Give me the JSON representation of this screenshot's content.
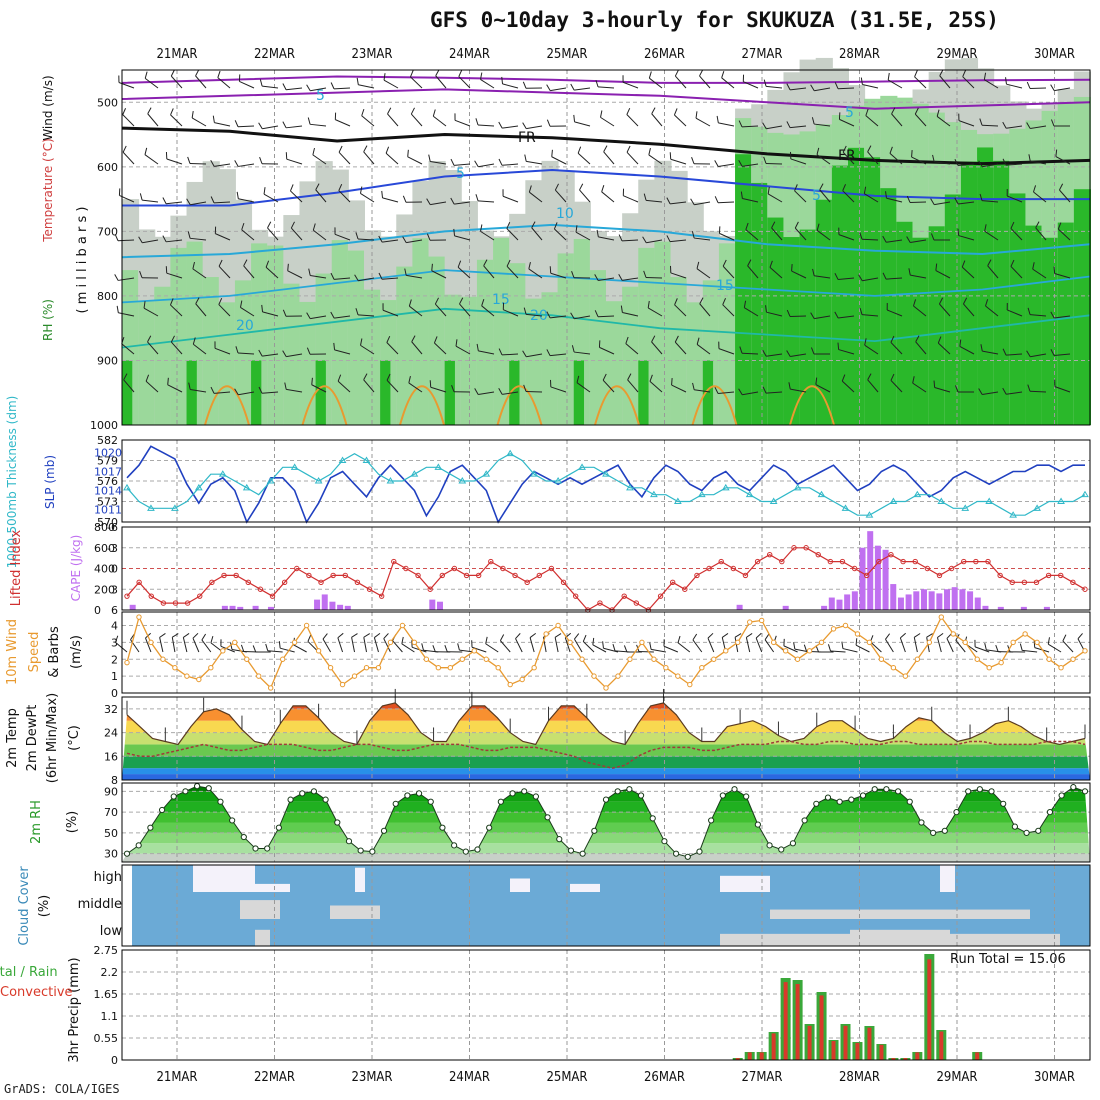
{
  "title": "GFS 0~10day 3-hourly for SKUKUZA (31.5E, 25S)",
  "credit": "GrADS: COLA/IGES",
  "dates": [
    "21MAR",
    "22MAR",
    "23MAR",
    "24MAR",
    "25MAR",
    "26MAR",
    "27MAR",
    "28MAR",
    "29MAR",
    "30MAR"
  ],
  "colors": {
    "rh_green": "#2ab82a",
    "rh_light": "#9bd89b",
    "rh_grey": "#c8d0c8",
    "temp_orange": "#e89a30",
    "temp_cyan": "#28a8d8",
    "temp_blue": "#2848d8",
    "wind_purple": "#8a20b0",
    "slp_blue": "#2040c0",
    "thick_cyan": "#30b8c8",
    "li_red": "#d03030",
    "cape_violet": "#c070f0",
    "wind10": "#e89a30",
    "cloud_blue": "#6baad6",
    "cloud_white": "#f4f2fa",
    "cloud_grey": "#d8d8d8",
    "rain_green": "#3aa83a",
    "rain_red": "#d83a2a"
  },
  "chart_data": [
    {
      "type": "heatmap",
      "panel": "cross-section",
      "ylabel_parts": [
        "RH (%)",
        "Temperature (°C)",
        "Wind (m/s)"
      ],
      "yunits": "( m i l l i b a r s )",
      "yticks": [
        500,
        600,
        700,
        800,
        900,
        1000
      ],
      "ylim": [
        450,
        1000
      ],
      "contour_labels": [
        "5",
        "FR",
        "FR",
        "5",
        "5",
        "10",
        "15",
        "15",
        "20",
        "20",
        "5"
      ],
      "freezing_level_mb": [
        540,
        545,
        560,
        550,
        555,
        565,
        580,
        590,
        595,
        590
      ],
      "isotherm_5": [
        660,
        660,
        640,
        615,
        605,
        615,
        630,
        645,
        650,
        650
      ],
      "isotherm_10": [
        740,
        735,
        720,
        700,
        690,
        700,
        720,
        730,
        735,
        720
      ]
    },
    {
      "type": "line",
      "panel": "thickness-slp",
      "ylabel_left": "1000-500mb Thickness (dm)",
      "ylabel_right": "SLP (mb)",
      "left_ticks": [
        570,
        573,
        576,
        579,
        582
      ],
      "right_ticks": [
        1011,
        1014,
        1017,
        1020
      ],
      "series": [
        {
          "name": "SLP (mb)",
          "values": [
            1016,
            1018,
            1021,
            1020,
            1019,
            1015,
            1012,
            1015,
            1016,
            1014,
            1009,
            1012,
            1016,
            1016,
            1014,
            1009,
            1012,
            1016,
            1017,
            1015,
            1013,
            1016,
            1018,
            1016,
            1014,
            1010,
            1013,
            1017,
            1018,
            1016,
            1014,
            1009,
            1012,
            1015,
            1017,
            1016,
            1015,
            1016,
            1015,
            1016,
            1017,
            1018,
            1015,
            1013,
            1016,
            1018,
            1017,
            1015,
            1014,
            1016,
            1017,
            1015,
            1014,
            1016,
            1018,
            1017,
            1015,
            1016,
            1017,
            1018,
            1016,
            1014,
            1015,
            1017,
            1018,
            1017,
            1015,
            1013,
            1014,
            1016,
            1017,
            1016,
            1015,
            1016,
            1017,
            1017,
            1018,
            1018,
            1017,
            1018,
            1018
          ]
        },
        {
          "name": "Thickness (dm)",
          "values": [
            575,
            573,
            572,
            572,
            572,
            573,
            575,
            577,
            577,
            576,
            575,
            574,
            576,
            578,
            578,
            577,
            576,
            577,
            579,
            580,
            579,
            577,
            576,
            576,
            577,
            578,
            578,
            577,
            576,
            576,
            577,
            579,
            580,
            579,
            577,
            576,
            576,
            577,
            578,
            578,
            577,
            576,
            575,
            575,
            574,
            574,
            573,
            573,
            574,
            574,
            575,
            575,
            574,
            573,
            573,
            574,
            575,
            575,
            574,
            573,
            572,
            571,
            571,
            572,
            573,
            573,
            574,
            574,
            573,
            572,
            572,
            573,
            573,
            572,
            571,
            571,
            572,
            573,
            573,
            573,
            574
          ]
        }
      ]
    },
    {
      "type": "bar",
      "panel": "cape-li",
      "ylabel_left": "Lifted Index",
      "ylabel_right": "CAPE (J/kg)",
      "left_ticks": [
        "-6",
        "-3",
        "0",
        "3",
        "6"
      ],
      "right_ticks": [
        0,
        200,
        400,
        600,
        800
      ],
      "series": [
        {
          "name": "CAPE (J/kg)",
          "values": [
            0,
            50,
            0,
            0,
            0,
            0,
            0,
            0,
            0,
            0,
            0,
            0,
            0,
            40,
            40,
            30,
            0,
            40,
            0,
            30,
            0,
            0,
            0,
            0,
            0,
            100,
            150,
            80,
            50,
            40,
            0,
            0,
            0,
            0,
            0,
            0,
            0,
            0,
            0,
            0,
            100,
            80,
            0,
            0,
            0,
            0,
            0,
            0,
            0,
            0,
            0,
            0,
            0,
            0,
            0,
            0,
            0,
            0,
            0,
            0,
            0,
            0,
            0,
            0,
            0,
            0,
            0,
            0,
            0,
            0,
            0,
            0,
            0,
            0,
            0,
            0,
            0,
            0,
            0,
            0,
            50,
            0,
            0,
            0,
            0,
            0,
            40,
            0,
            0,
            0,
            0,
            40,
            120,
            100,
            150,
            180,
            600,
            760,
            620,
            580,
            250,
            120,
            150,
            180,
            200,
            180,
            160,
            200,
            220,
            200,
            180,
            120,
            40,
            0,
            30,
            0,
            0,
            30,
            0,
            0,
            30,
            0,
            0,
            0,
            0,
            0
          ]
        },
        {
          "name": "Lifted Index",
          "values": [
            4,
            2,
            4,
            5,
            5,
            5,
            4,
            2,
            1,
            1,
            2,
            3,
            4,
            2,
            0,
            1,
            2,
            1,
            1,
            2,
            3,
            4,
            -1,
            0,
            1,
            3,
            1,
            0,
            1,
            1,
            -1,
            0,
            1,
            2,
            1,
            0,
            2,
            4,
            6,
            5,
            6,
            4,
            5,
            6,
            4,
            2,
            3,
            1,
            0,
            -1,
            0,
            1,
            -1,
            -2,
            -1,
            -3,
            -3,
            -2,
            -1,
            -1,
            0,
            1,
            -1,
            -2,
            -1,
            -1,
            0,
            1,
            0,
            -1,
            -1,
            -1,
            1,
            2,
            2,
            2,
            1,
            1,
            2,
            3
          ]
        }
      ]
    },
    {
      "type": "line",
      "panel": "wind10",
      "ylabel": "10m Wind Speed & Barbs (m/s)",
      "yticks": [
        0,
        1,
        2,
        3,
        4
      ],
      "ylim": [
        0,
        4.8
      ],
      "series": [
        {
          "name": "10m Wind Speed",
          "values": [
            1.8,
            4.5,
            3.0,
            2.0,
            1.5,
            1.0,
            0.8,
            1.5,
            2.5,
            3.0,
            2.0,
            1.0,
            0.3,
            2.0,
            3.0,
            4.0,
            2.5,
            1.5,
            0.5,
            1.0,
            1.5,
            1.5,
            3.0,
            4.0,
            3.0,
            2.0,
            1.5,
            1.5,
            2.0,
            2.5,
            2.0,
            1.5,
            0.5,
            0.8,
            1.5,
            3.5,
            4.0,
            3.0,
            2.0,
            1.0,
            0.3,
            1.0,
            2.0,
            3.0,
            2.0,
            1.5,
            1.0,
            0.5,
            1.5,
            2.0,
            2.5,
            3.0,
            4.2,
            4.3,
            3.0,
            2.5,
            2.0,
            2.5,
            3.0,
            3.8,
            4.0,
            3.5,
            3.0,
            2.0,
            1.5,
            1.0,
            2.0,
            3.0,
            4.5,
            3.5,
            3.0,
            2.0,
            1.5,
            1.8,
            3.0,
            3.5,
            3.0,
            2.0,
            1.5,
            2.0,
            2.5
          ]
        }
      ]
    },
    {
      "type": "area",
      "panel": "temp-dewpt",
      "ylabel": "2m Temp 2m DewPt (6hr Min/Max) (°C)",
      "yticks": [
        8,
        16,
        24,
        32
      ],
      "ylim": [
        8,
        36
      ],
      "series": [
        {
          "name": "2m Temp (°C)",
          "values": [
            30,
            26,
            22,
            21,
            20,
            26,
            31,
            32,
            30,
            25,
            21,
            20,
            27,
            33,
            33,
            29,
            24,
            21,
            20,
            28,
            33,
            34,
            30,
            24,
            21,
            21,
            28,
            33,
            33,
            29,
            24,
            21,
            20,
            28,
            33,
            33,
            29,
            24,
            21,
            20,
            27,
            33,
            34,
            30,
            24,
            21,
            21,
            26,
            27,
            28,
            26,
            23,
            21,
            22,
            26,
            28,
            28,
            25,
            22,
            21,
            22,
            26,
            29,
            28,
            24,
            21,
            22,
            24,
            27,
            28,
            26,
            23,
            21,
            20,
            21,
            22
          ]
        },
        {
          "name": "2m DewPt (°C)",
          "values": [
            17,
            16,
            16,
            17,
            18,
            19,
            20,
            19,
            18,
            18,
            19,
            20,
            20,
            20,
            19,
            18,
            18,
            19,
            20,
            20,
            19,
            18,
            18,
            19,
            20,
            20,
            20,
            19,
            18,
            18,
            19,
            19,
            19,
            18,
            17,
            16,
            14,
            13,
            12,
            13,
            16,
            18,
            19,
            19,
            19,
            18,
            18,
            19,
            20,
            20,
            20,
            21,
            21,
            20,
            20,
            21,
            21,
            20,
            20,
            20,
            21,
            21,
            20,
            20,
            20,
            20,
            21,
            21,
            20,
            20,
            20,
            20,
            21,
            21,
            21,
            20
          ]
        }
      ]
    },
    {
      "type": "area",
      "panel": "rh2m",
      "ylabel": "2m RH (%)",
      "yticks": [
        30,
        50,
        70,
        90
      ],
      "ylim": [
        22,
        98
      ],
      "series": [
        {
          "name": "2m RH (%)",
          "values": [
            30,
            38,
            55,
            72,
            85,
            90,
            95,
            93,
            80,
            62,
            46,
            35,
            35,
            55,
            82,
            88,
            90,
            82,
            60,
            42,
            33,
            32,
            52,
            78,
            86,
            88,
            80,
            55,
            38,
            32,
            34,
            55,
            80,
            88,
            90,
            85,
            65,
            44,
            33,
            30,
            52,
            82,
            90,
            92,
            86,
            64,
            42,
            30,
            27,
            32,
            62,
            86,
            92,
            85,
            58,
            38,
            34,
            40,
            62,
            78,
            84,
            80,
            82,
            86,
            92,
            92,
            90,
            80,
            60,
            50,
            52,
            70,
            90,
            92,
            90,
            78,
            56,
            50,
            52,
            70,
            86,
            94,
            90
          ]
        }
      ]
    },
    {
      "type": "heatmap",
      "panel": "cloud",
      "ylabel": "Cloud Cover (%)",
      "levels": [
        "high",
        "middle",
        "low"
      ]
    },
    {
      "type": "bar",
      "panel": "precip",
      "ylabel": "3hr Precip (mm)",
      "ylabel_left": "Total / Rain Convective",
      "yticks": [
        "0",
        "0.55",
        "1.1",
        "1.65",
        "2.2",
        "2.75"
      ],
      "ylim": [
        0,
        2.75
      ],
      "run_total_label": "Run Total = 15.06",
      "series": [
        {
          "name": "Total",
          "values": [
            0,
            0,
            0,
            0,
            0,
            0,
            0,
            0,
            0,
            0,
            0,
            0,
            0,
            0,
            0,
            0,
            0,
            0,
            0,
            0,
            0,
            0,
            0,
            0,
            0,
            0,
            0,
            0,
            0,
            0,
            0,
            0,
            0,
            0,
            0,
            0,
            0,
            0,
            0,
            0,
            0,
            0,
            0,
            0,
            0,
            0,
            0,
            0,
            0,
            0,
            0,
            0.05,
            0.2,
            0.2,
            0.7,
            2.05,
            2.0,
            0.9,
            1.7,
            0.5,
            0.9,
            0.45,
            0.85,
            0.4,
            0.05,
            0.05,
            0.2,
            2.65,
            0.75,
            0,
            0,
            0.2,
            0,
            0,
            0,
            0,
            0,
            0,
            0,
            0,
            0
          ]
        }
      ]
    }
  ]
}
